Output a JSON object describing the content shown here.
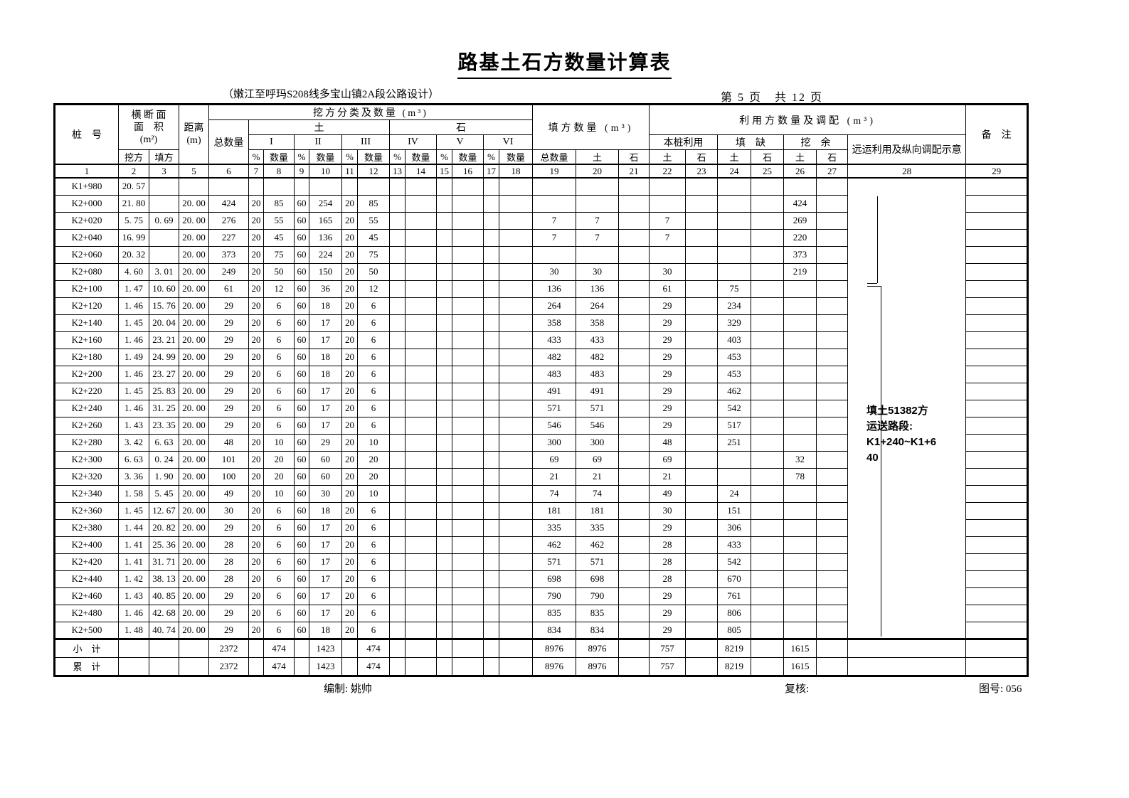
{
  "title": "路基土石方数量计算表",
  "subtitle": "（嫩江至呼玛S208线多宝山镇2A段公路设计）",
  "page_info": "第 5 页　共 12 页",
  "header": {
    "station": "桩　号",
    "cross_section": [
      "横 断 面",
      "面　积",
      "(m²)"
    ],
    "cut_label": "挖方",
    "fill_label": "填方",
    "distance": [
      "距离",
      "(m)"
    ],
    "cut_class": "挖方分类及数量 (m³)",
    "total_qty": "总数量",
    "soil": "土",
    "rock": "石",
    "grades": [
      "I",
      "II",
      "III",
      "IV",
      "V",
      "VI"
    ],
    "pct": "%",
    "qty": "数量",
    "fill_qty": "填方数量 (m³)",
    "use_alloc": "利用方数量及调配 (m³)",
    "onsite_use": "本桩利用",
    "fill_deficit": "填　缺",
    "cut_surplus": "挖　余",
    "haul_note": "远运利用及纵向调配示意",
    "remark": "备　注"
  },
  "column_numbers": [
    "1",
    "2",
    "3",
    "5",
    "6",
    "7",
    "8",
    "9",
    "10",
    "11",
    "12",
    "13",
    "14",
    "15",
    "16",
    "17",
    "18",
    "19",
    "20",
    "21",
    "22",
    "23",
    "24",
    "25",
    "26",
    "27",
    "28",
    "29"
  ],
  "rows": [
    [
      "K1+980",
      "20. 57",
      "",
      "",
      "",
      "",
      "",
      "",
      "",
      "",
      "",
      "",
      "",
      "",
      "",
      "",
      "",
      "",
      "",
      "",
      "",
      "",
      "",
      "",
      "",
      ""
    ],
    [
      "K2+000",
      "21. 80",
      "",
      "20. 00",
      "424",
      "20",
      "85",
      "60",
      "254",
      "20",
      "85",
      "",
      "",
      "",
      "",
      "",
      "",
      "",
      "",
      "",
      "",
      "",
      "",
      "",
      "424",
      ""
    ],
    [
      "K2+020",
      "5. 75",
      "0. 69",
      "20. 00",
      "276",
      "20",
      "55",
      "60",
      "165",
      "20",
      "55",
      "",
      "",
      "",
      "",
      "",
      "",
      "7",
      "7",
      "",
      "7",
      "",
      "",
      "",
      "269",
      ""
    ],
    [
      "K2+040",
      "16. 99",
      "",
      "20. 00",
      "227",
      "20",
      "45",
      "60",
      "136",
      "20",
      "45",
      "",
      "",
      "",
      "",
      "",
      "",
      "7",
      "7",
      "",
      "7",
      "",
      "",
      "",
      "220",
      ""
    ],
    [
      "K2+060",
      "20. 32",
      "",
      "20. 00",
      "373",
      "20",
      "75",
      "60",
      "224",
      "20",
      "75",
      "",
      "",
      "",
      "",
      "",
      "",
      "",
      "",
      "",
      "",
      "",
      "",
      "",
      "373",
      ""
    ],
    [
      "K2+080",
      "4. 60",
      "3. 01",
      "20. 00",
      "249",
      "20",
      "50",
      "60",
      "150",
      "20",
      "50",
      "",
      "",
      "",
      "",
      "",
      "",
      "30",
      "30",
      "",
      "30",
      "",
      "",
      "",
      "219",
      ""
    ],
    [
      "K2+100",
      "1. 47",
      "10. 60",
      "20. 00",
      "61",
      "20",
      "12",
      "60",
      "36",
      "20",
      "12",
      "",
      "",
      "",
      "",
      "",
      "",
      "136",
      "136",
      "",
      "61",
      "",
      "75",
      "",
      "",
      ""
    ],
    [
      "K2+120",
      "1. 46",
      "15. 76",
      "20. 00",
      "29",
      "20",
      "6",
      "60",
      "18",
      "20",
      "6",
      "",
      "",
      "",
      "",
      "",
      "",
      "264",
      "264",
      "",
      "29",
      "",
      "234",
      "",
      "",
      ""
    ],
    [
      "K2+140",
      "1. 45",
      "20. 04",
      "20. 00",
      "29",
      "20",
      "6",
      "60",
      "17",
      "20",
      "6",
      "",
      "",
      "",
      "",
      "",
      "",
      "358",
      "358",
      "",
      "29",
      "",
      "329",
      "",
      "",
      ""
    ],
    [
      "K2+160",
      "1. 46",
      "23. 21",
      "20. 00",
      "29",
      "20",
      "6",
      "60",
      "17",
      "20",
      "6",
      "",
      "",
      "",
      "",
      "",
      "",
      "433",
      "433",
      "",
      "29",
      "",
      "403",
      "",
      "",
      ""
    ],
    [
      "K2+180",
      "1. 49",
      "24. 99",
      "20. 00",
      "29",
      "20",
      "6",
      "60",
      "18",
      "20",
      "6",
      "",
      "",
      "",
      "",
      "",
      "",
      "482",
      "482",
      "",
      "29",
      "",
      "453",
      "",
      "",
      ""
    ],
    [
      "K2+200",
      "1. 46",
      "23. 27",
      "20. 00",
      "29",
      "20",
      "6",
      "60",
      "18",
      "20",
      "6",
      "",
      "",
      "",
      "",
      "",
      "",
      "483",
      "483",
      "",
      "29",
      "",
      "453",
      "",
      "",
      ""
    ],
    [
      "K2+220",
      "1. 45",
      "25. 83",
      "20. 00",
      "29",
      "20",
      "6",
      "60",
      "17",
      "20",
      "6",
      "",
      "",
      "",
      "",
      "",
      "",
      "491",
      "491",
      "",
      "29",
      "",
      "462",
      "",
      "",
      ""
    ],
    [
      "K2+240",
      "1. 46",
      "31. 25",
      "20. 00",
      "29",
      "20",
      "6",
      "60",
      "17",
      "20",
      "6",
      "",
      "",
      "",
      "",
      "",
      "",
      "571",
      "571",
      "",
      "29",
      "",
      "542",
      "",
      "",
      ""
    ],
    [
      "K2+260",
      "1. 43",
      "23. 35",
      "20. 00",
      "29",
      "20",
      "6",
      "60",
      "17",
      "20",
      "6",
      "",
      "",
      "",
      "",
      "",
      "",
      "546",
      "546",
      "",
      "29",
      "",
      "517",
      "",
      "",
      ""
    ],
    [
      "K2+280",
      "3. 42",
      "6. 63",
      "20. 00",
      "48",
      "20",
      "10",
      "60",
      "29",
      "20",
      "10",
      "",
      "",
      "",
      "",
      "",
      "",
      "300",
      "300",
      "",
      "48",
      "",
      "251",
      "",
      "",
      ""
    ],
    [
      "K2+300",
      "6. 63",
      "0. 24",
      "20. 00",
      "101",
      "20",
      "20",
      "60",
      "60",
      "20",
      "20",
      "",
      "",
      "",
      "",
      "",
      "",
      "69",
      "69",
      "",
      "69",
      "",
      "",
      "",
      "32",
      ""
    ],
    [
      "K2+320",
      "3. 36",
      "1. 90",
      "20. 00",
      "100",
      "20",
      "20",
      "60",
      "60",
      "20",
      "20",
      "",
      "",
      "",
      "",
      "",
      "",
      "21",
      "21",
      "",
      "21",
      "",
      "",
      "",
      "78",
      ""
    ],
    [
      "K2+340",
      "1. 58",
      "5. 45",
      "20. 00",
      "49",
      "20",
      "10",
      "60",
      "30",
      "20",
      "10",
      "",
      "",
      "",
      "",
      "",
      "",
      "74",
      "74",
      "",
      "49",
      "",
      "24",
      "",
      "",
      ""
    ],
    [
      "K2+360",
      "1. 45",
      "12. 67",
      "20. 00",
      "30",
      "20",
      "6",
      "60",
      "18",
      "20",
      "6",
      "",
      "",
      "",
      "",
      "",
      "",
      "181",
      "181",
      "",
      "30",
      "",
      "151",
      "",
      "",
      ""
    ],
    [
      "K2+380",
      "1. 44",
      "20. 82",
      "20. 00",
      "29",
      "20",
      "6",
      "60",
      "17",
      "20",
      "6",
      "",
      "",
      "",
      "",
      "",
      "",
      "335",
      "335",
      "",
      "29",
      "",
      "306",
      "",
      "",
      ""
    ],
    [
      "K2+400",
      "1. 41",
      "25. 36",
      "20. 00",
      "28",
      "20",
      "6",
      "60",
      "17",
      "20",
      "6",
      "",
      "",
      "",
      "",
      "",
      "",
      "462",
      "462",
      "",
      "28",
      "",
      "433",
      "",
      "",
      ""
    ],
    [
      "K2+420",
      "1. 41",
      "31. 71",
      "20. 00",
      "28",
      "20",
      "6",
      "60",
      "17",
      "20",
      "6",
      "",
      "",
      "",
      "",
      "",
      "",
      "571",
      "571",
      "",
      "28",
      "",
      "542",
      "",
      "",
      ""
    ],
    [
      "K2+440",
      "1. 42",
      "38. 13",
      "20. 00",
      "28",
      "20",
      "6",
      "60",
      "17",
      "20",
      "6",
      "",
      "",
      "",
      "",
      "",
      "",
      "698",
      "698",
      "",
      "28",
      "",
      "670",
      "",
      "",
      ""
    ],
    [
      "K2+460",
      "1. 43",
      "40. 85",
      "20. 00",
      "29",
      "20",
      "6",
      "60",
      "17",
      "20",
      "6",
      "",
      "",
      "",
      "",
      "",
      "",
      "790",
      "790",
      "",
      "29",
      "",
      "761",
      "",
      "",
      ""
    ],
    [
      "K2+480",
      "1. 46",
      "42. 68",
      "20. 00",
      "29",
      "20",
      "6",
      "60",
      "17",
      "20",
      "6",
      "",
      "",
      "",
      "",
      "",
      "",
      "835",
      "835",
      "",
      "29",
      "",
      "806",
      "",
      "",
      ""
    ],
    [
      "K2+500",
      "1. 48",
      "40. 74",
      "20. 00",
      "29",
      "20",
      "6",
      "60",
      "18",
      "20",
      "6",
      "",
      "",
      "",
      "",
      "",
      "",
      "834",
      "834",
      "",
      "29",
      "",
      "805",
      "",
      "",
      ""
    ]
  ],
  "subtotal": {
    "label": "小　计",
    "values": [
      "",
      "",
      "",
      "2372",
      "",
      "474",
      "",
      "1423",
      "",
      "474",
      "",
      "",
      "",
      "",
      "",
      "",
      "8976",
      "8976",
      "",
      "757",
      "",
      "8219",
      "",
      "1615",
      ""
    ]
  },
  "cumulative": {
    "label": "累　计",
    "values": [
      "",
      "",
      "",
      "2372",
      "",
      "474",
      "",
      "1423",
      "",
      "474",
      "",
      "",
      "",
      "",
      "",
      "",
      "8976",
      "8976",
      "",
      "757",
      "",
      "8219",
      "",
      "1615",
      ""
    ]
  },
  "diagram": {
    "note_lines": [
      "填土51382方",
      "运送路段:",
      "K1+240~K1+6",
      "40"
    ]
  },
  "footer": {
    "prepared": "编制: 姚帅",
    "checked": "复核:",
    "drawing_no": "图号: 056"
  }
}
